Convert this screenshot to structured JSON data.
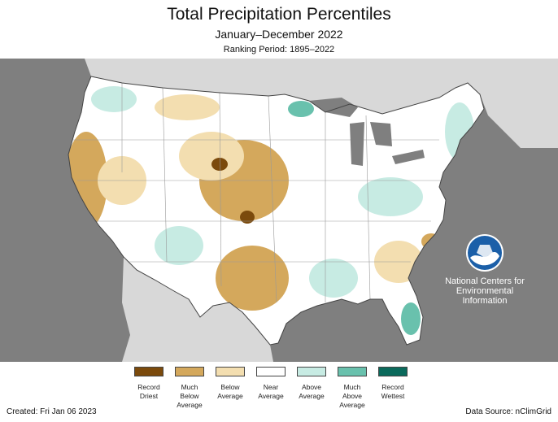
{
  "header": {
    "title": "Total Precipitation Percentiles",
    "subtitle": "January–December 2022",
    "ranking_period": "Ranking Period: 1895–2022"
  },
  "map": {
    "background_color": "#7f7f7f",
    "land_outside_color": "#d8d8d8",
    "lake_color": "#7f7f7f",
    "icon": "noaa-logo",
    "agency_lines": [
      "National Centers for",
      "Environmental",
      "Information"
    ]
  },
  "legend": {
    "items": [
      {
        "lines": [
          "Record",
          "Driest"
        ],
        "color": "#7b4a0c"
      },
      {
        "lines": [
          "Much",
          "Below",
          "Average"
        ],
        "color": "#d4a85c"
      },
      {
        "lines": [
          "Below",
          "Average"
        ],
        "color": "#f3deb0"
      },
      {
        "lines": [
          "Near",
          "Average"
        ],
        "color": "#ffffff"
      },
      {
        "lines": [
          "Above",
          "Average"
        ],
        "color": "#c7ebe3"
      },
      {
        "lines": [
          "Much",
          "Above",
          "Average"
        ],
        "color": "#69c1ad"
      },
      {
        "lines": [
          "Record",
          "Wettest"
        ],
        "color": "#0b6a5c"
      }
    ]
  },
  "footer": {
    "created": "Created: Fri Jan 06 2023",
    "source": "Data Source: nClimGrid"
  }
}
